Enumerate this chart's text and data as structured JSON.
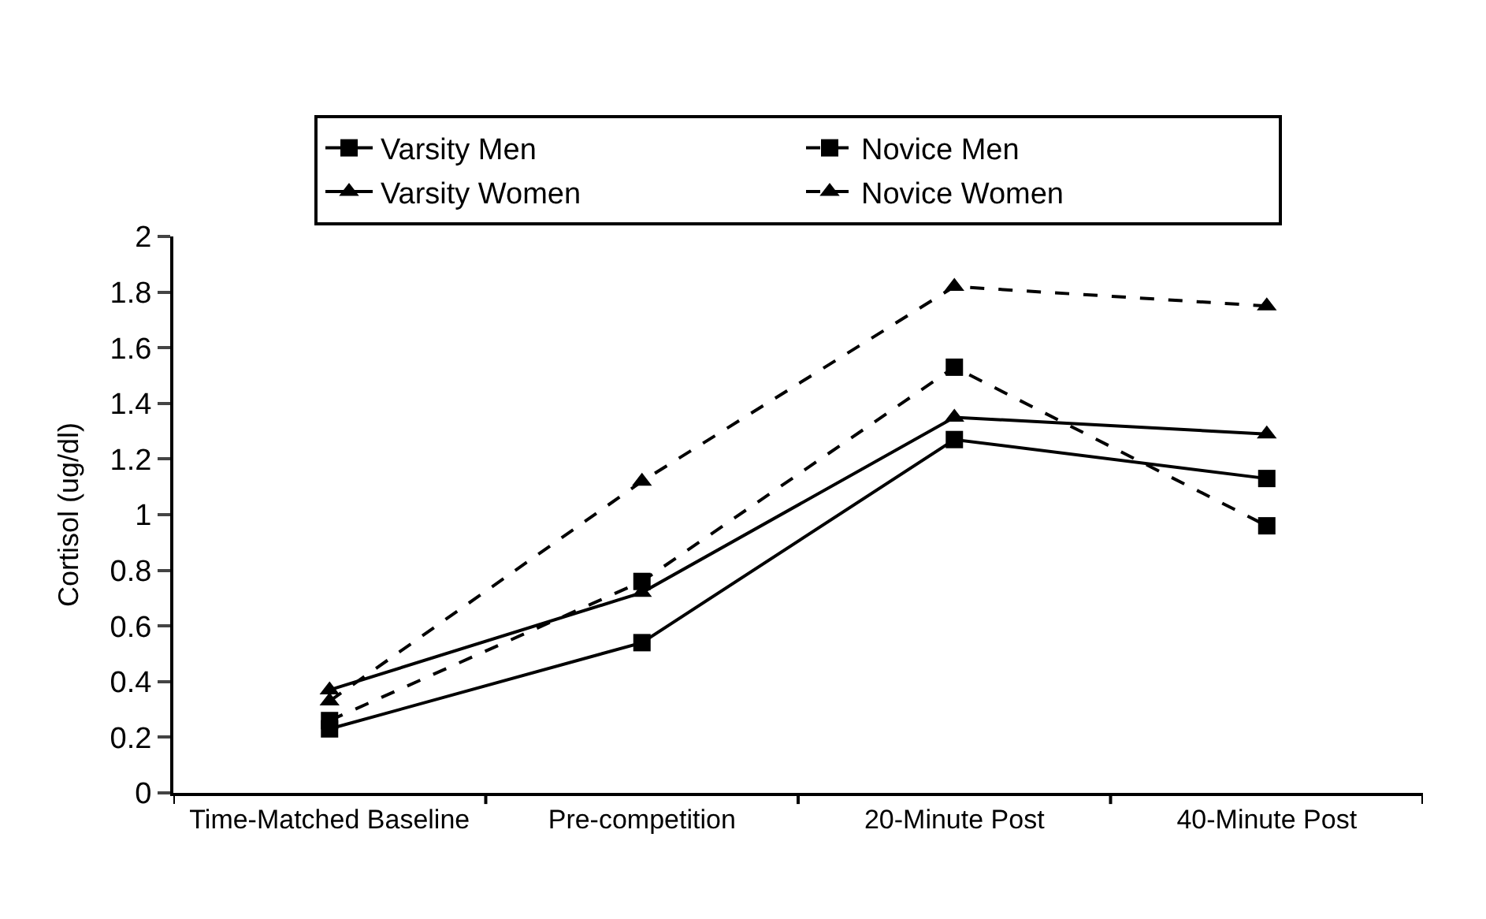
{
  "chart_data": {
    "type": "line",
    "ylabel": "Cortisol (ug/dl)",
    "categories": [
      "Time-Matched Baseline",
      "Pre-competition",
      "20-Minute Post",
      "40-Minute Post"
    ],
    "ylim": [
      0,
      2
    ],
    "yticks": [
      0,
      0.2,
      0.4,
      0.6,
      0.8,
      1,
      1.2,
      1.4,
      1.6,
      1.8,
      2
    ],
    "legend": "top",
    "series": [
      {
        "name": "Varsity Men",
        "color": "#000000",
        "marker": "square",
        "line_style": "solid",
        "values": [
          0.23,
          0.54,
          1.27,
          1.13
        ]
      },
      {
        "name": "Novice Men",
        "color": "#000000",
        "marker": "square",
        "line_style": "dashed",
        "values": [
          0.26,
          0.76,
          1.53,
          0.96
        ]
      },
      {
        "name": "Varsity Women",
        "color": "#000000",
        "marker": "triangle",
        "line_style": "solid",
        "values": [
          0.37,
          0.72,
          1.35,
          1.29
        ]
      },
      {
        "name": "Novice Women",
        "color": "#000000",
        "marker": "triangle",
        "line_style": "dashed",
        "values": [
          0.33,
          1.12,
          1.82,
          1.75
        ]
      }
    ]
  }
}
